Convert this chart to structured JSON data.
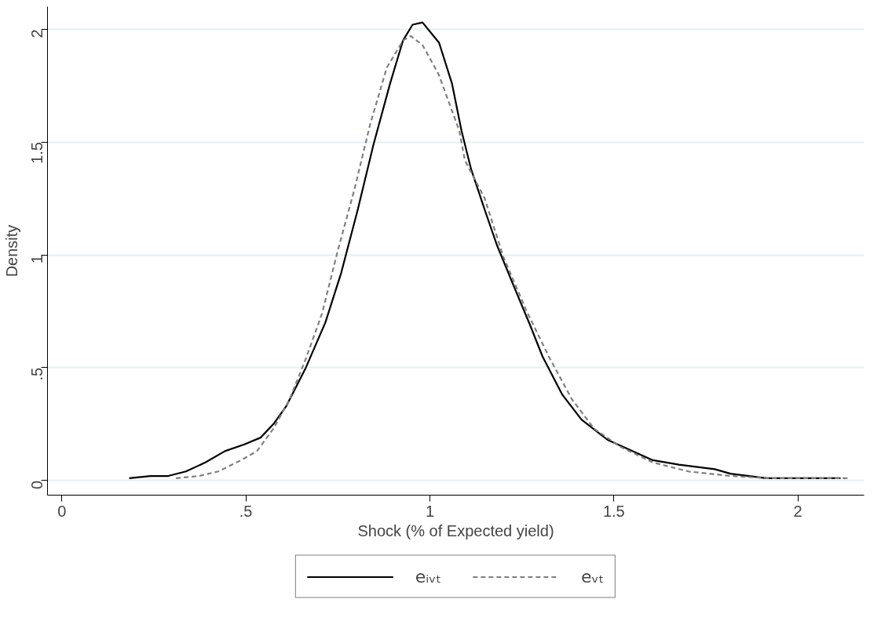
{
  "chart_data": {
    "type": "line",
    "xlabel": "Shock (% of Expected yield)",
    "ylabel": "Density",
    "xlim": [
      -0.039,
      2.18
    ],
    "ylim": [
      -0.065,
      2.1
    ],
    "xticks": [
      0,
      {
        "value": 0.5,
        "label": ".5"
      },
      1,
      {
        "value": 1.5,
        "label": "1.5"
      },
      2
    ],
    "yticks": [
      0,
      {
        "value": 0.5,
        "label": ".5"
      },
      1,
      {
        "value": 1.5,
        "label": "1.5"
      },
      2
    ],
    "grid": "y",
    "legend": "bottom",
    "series": [
      {
        "name": "eᵢᵥₜ",
        "color": "#000000",
        "line_style": "solid",
        "x": [
          0.183,
          0.241,
          0.289,
          0.337,
          0.39,
          0.443,
          0.496,
          0.54,
          0.575,
          0.61,
          0.663,
          0.716,
          0.759,
          0.804,
          0.847,
          0.892,
          0.927,
          0.953,
          0.98,
          1.025,
          1.06,
          1.086,
          1.112,
          1.149,
          1.183,
          1.236,
          1.272,
          1.306,
          1.36,
          1.412,
          1.483,
          1.606,
          1.677,
          1.774,
          1.817,
          1.914,
          2.011,
          2.116
        ],
        "values": [
          0.01,
          0.02,
          0.02,
          0.04,
          0.08,
          0.13,
          0.16,
          0.19,
          0.25,
          0.33,
          0.5,
          0.7,
          0.92,
          1.2,
          1.49,
          1.76,
          1.95,
          2.02,
          2.03,
          1.94,
          1.76,
          1.55,
          1.38,
          1.2,
          1.04,
          0.83,
          0.69,
          0.55,
          0.38,
          0.27,
          0.18,
          0.09,
          0.07,
          0.05,
          0.03,
          0.01,
          0.01,
          0.01
        ]
      },
      {
        "name": "eᵥₜ",
        "color": "#808080",
        "line_style": "dashed",
        "x": [
          0.31,
          0.373,
          0.425,
          0.487,
          0.53,
          0.575,
          0.619,
          0.663,
          0.707,
          0.75,
          0.795,
          0.838,
          0.883,
          0.927,
          0.948,
          0.98,
          1.024,
          1.08,
          1.095,
          1.149,
          1.2,
          1.263,
          1.323,
          1.386,
          1.446,
          1.517,
          1.606,
          1.703,
          1.817,
          1.922,
          2.142
        ],
        "values": [
          0.01,
          0.02,
          0.04,
          0.09,
          0.13,
          0.23,
          0.36,
          0.54,
          0.74,
          1.02,
          1.29,
          1.58,
          1.83,
          1.95,
          1.97,
          1.93,
          1.8,
          1.55,
          1.42,
          1.25,
          0.99,
          0.75,
          0.55,
          0.36,
          0.23,
          0.15,
          0.08,
          0.04,
          0.02,
          0.01,
          0.01
        ]
      }
    ]
  }
}
